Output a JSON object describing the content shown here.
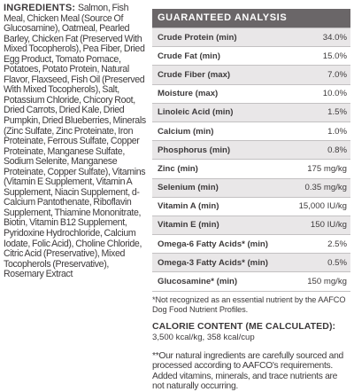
{
  "ingredients": {
    "heading": "INGREDIENTS:",
    "text": "Salmon, Fish Meal, Chicken Meal (Source Of Glucosamine), Oatmeal, Pearled Barley, Chicken Fat (Preserved With Mixed Tocopherols), Pea Fiber, Dried Egg Product, Tomato Pomace, Potatoes, Potato Protein, Natural Flavor, Flaxseed, Fish Oil (Preserved With Mixed Tocopherols), Salt, Potassium Chloride, Chicory Root, Dried Carrots, Dried Kale, Dried Pumpkin, Dried Blueberries, Minerals (Zinc Sulfate, Zinc Proteinate, Iron Proteinate, Ferrous Sulfate, Copper Proteinate, Manganese Sulfate, Sodium Selenite, Manganese Proteinate, Copper Sulfate), Vitamins (Vitamin E Supplement, Vitamin A Supplement, Niacin Supplement, d-Calcium Pantothenate, Riboflavin Supplement, Thiamine Mononitrate, Biotin, Vitamin B12 Supplement, Pyridoxine Hydrochloride, Calcium Iodate, Folic Acid), Choline Chloride, Citric Acid (Preservative), Mixed Tocopherols (Preservative), Rosemary Extract"
  },
  "analysis": {
    "title": "GUARANTEED ANALYSIS",
    "rows": [
      {
        "name": "Crude Protein (min)",
        "value": "34.0%"
      },
      {
        "name": "Crude Fat (min)",
        "value": "15.0%"
      },
      {
        "name": "Crude Fiber (max)",
        "value": "7.0%"
      },
      {
        "name": "Moisture (max)",
        "value": "10.0%"
      },
      {
        "name": "Linoleic Acid (min)",
        "value": "1.5%"
      },
      {
        "name": "Calcium (min)",
        "value": "1.0%"
      },
      {
        "name": "Phosphorus (min)",
        "value": "0.8%"
      },
      {
        "name": "Zinc (min)",
        "value": "175 mg/kg"
      },
      {
        "name": "Selenium (min)",
        "value": "0.35 mg/kg"
      },
      {
        "name": "Vitamin A (min)",
        "value": "15,000 IU/kg"
      },
      {
        "name": "Vitamin E (min)",
        "value": "150 IU/kg"
      },
      {
        "name": "Omega-6 Fatty Acids* (min)",
        "value": "2.5%"
      },
      {
        "name": "Omega-3 Fatty Acids* (min)",
        "value": "0.5%"
      },
      {
        "name": "Glucosamine* (min)",
        "value": "150 mg/kg"
      }
    ],
    "note": "*Not recognized as an essential nutrient by the AAFCO Dog Food Nutrient Profiles."
  },
  "calorie": {
    "title": "CALORIE CONTENT (ME CALCULATED):",
    "value": "3,500 kcal/kg, 358 kcal/cup"
  },
  "footnote": "**Our natural ingredients are carefully sourced and processed according to AAFCO's requirements. Added vitamins, minerals, and trace nutrients are not naturally occurring.",
  "colors": {
    "header_bg": "#6a6668",
    "row_shade": "#e9e7e8",
    "text": "#3d3a3b"
  }
}
